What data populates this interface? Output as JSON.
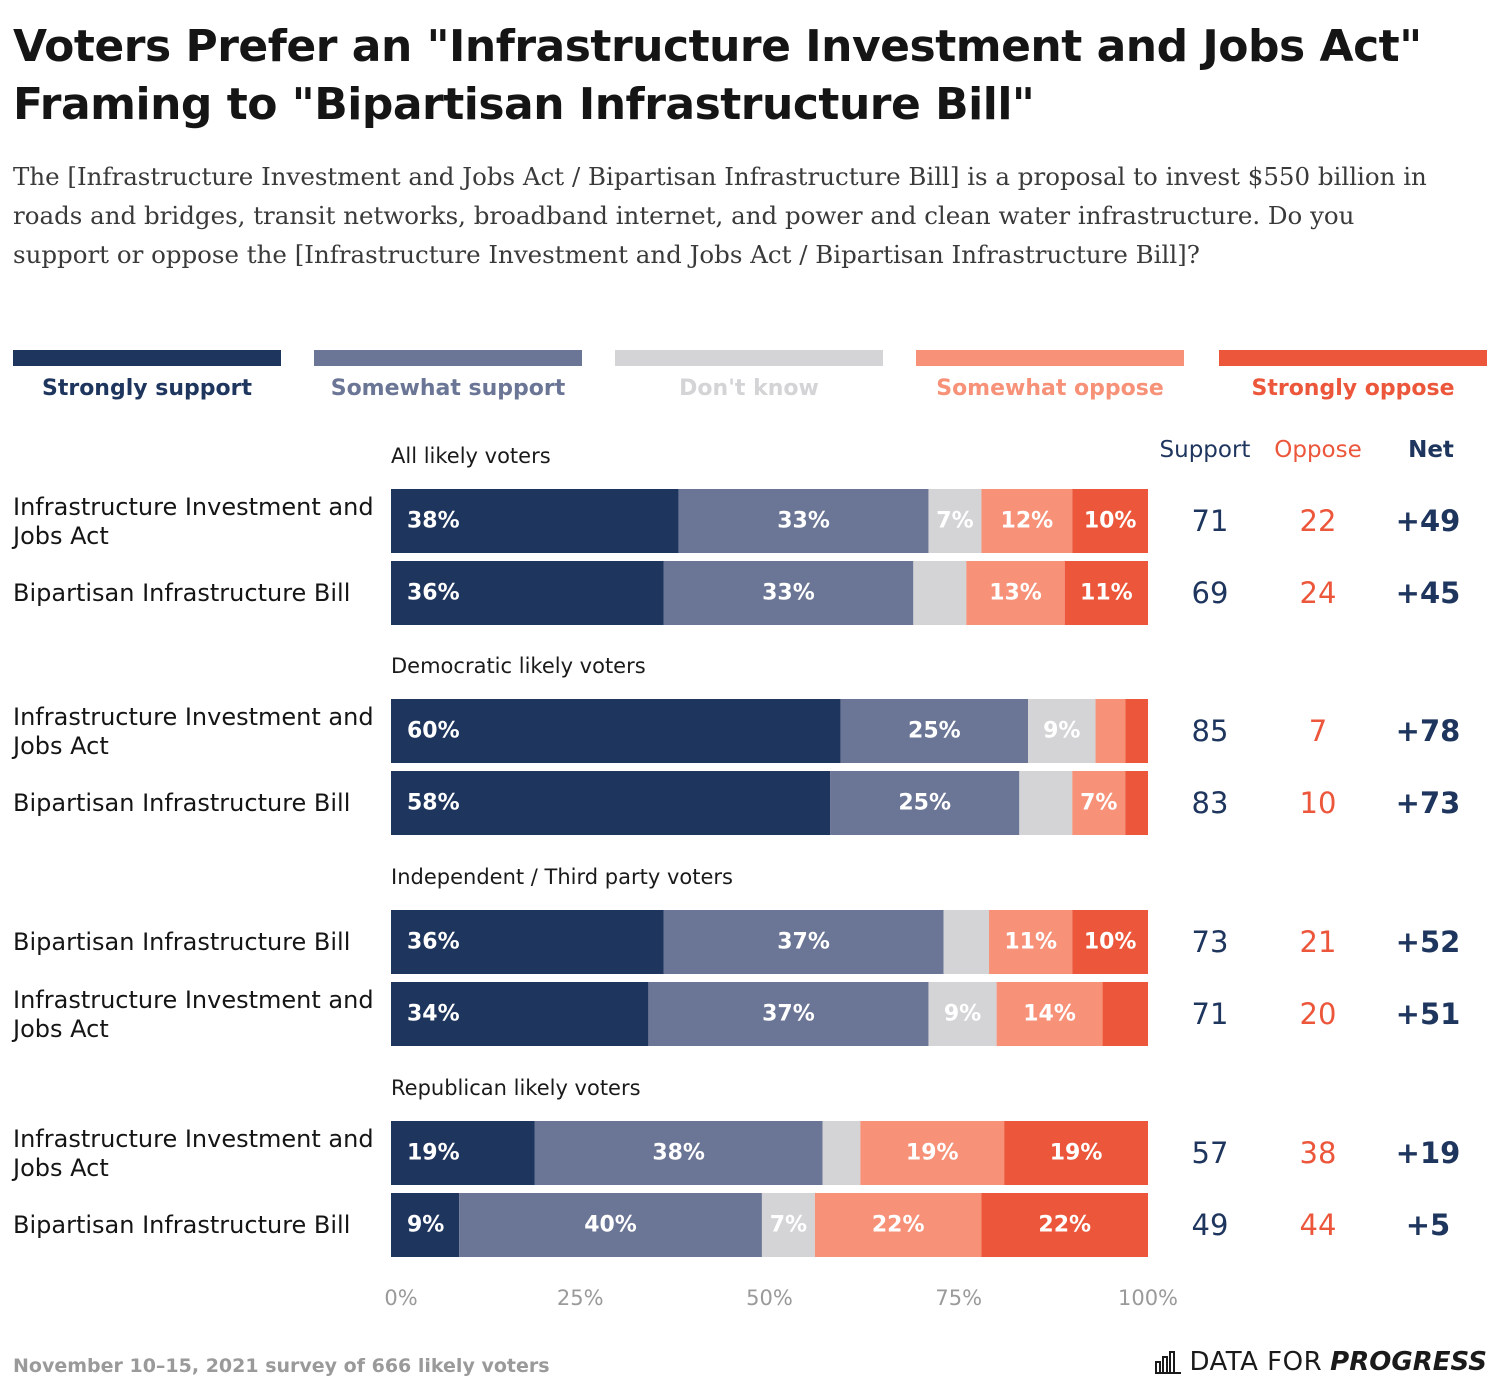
{
  "title": "Voters Prefer an \"Infrastructure Investment and Jobs Act\" Framing to \"Bipartisan Infrastructure Bill\"",
  "subtitle": "The [Infrastructure Investment and Jobs Act / Bipartisan Infrastructure Bill] is a proposal to invest $550 billion in roads and bridges, transit networks, broadband internet, and power and clean water infrastructure. Do you support or oppose the [Infrastructure Investment and Jobs Act / Bipartisan Infrastructure Bill]?",
  "legend": [
    {
      "label": "Strongly support",
      "color": "#1e355e"
    },
    {
      "label": "Somewhat support",
      "color": "#6b7595"
    },
    {
      "label": "Don't know",
      "color": "#d4d4d6"
    },
    {
      "label": "Somewhat oppose",
      "color": "#f79178"
    },
    {
      "label": "Strongly oppose",
      "color": "#ec563a"
    }
  ],
  "column_headers": {
    "support": "Support",
    "oppose": "Oppose",
    "net": "Net"
  },
  "footer": "November 10–15, 2021 survey of 666 likely voters",
  "brand": {
    "part1": "DATA FOR",
    "part2": "PROGRESS"
  },
  "chart_data": {
    "type": "bar",
    "orientation": "horizontal",
    "stacked": true,
    "series_names": [
      "Strongly support",
      "Somewhat support",
      "Don't know",
      "Somewhat oppose",
      "Strongly oppose"
    ],
    "xlim": [
      0,
      100
    ],
    "x_ticks": [
      "0%",
      "25%",
      "50%",
      "75%",
      "100%"
    ],
    "groups": [
      {
        "label": "All likely voters",
        "rows": [
          {
            "label": "Infrastructure Investment and Jobs Act",
            "values": [
              38,
              33,
              7,
              12,
              10
            ],
            "value_labels": [
              "38%",
              "33%",
              "7%",
              "12%",
              "10%"
            ],
            "support": "71",
            "oppose": "22",
            "net": "+49"
          },
          {
            "label": "Bipartisan Infrastructure Bill",
            "values": [
              36,
              33,
              7,
              13,
              11
            ],
            "value_labels": [
              "36%",
              "33%",
              "",
              "13%",
              "11%"
            ],
            "support": "69",
            "oppose": "24",
            "net": "+45"
          }
        ]
      },
      {
        "label": "Democratic likely voters",
        "rows": [
          {
            "label": "Infrastructure Investment and Jobs Act",
            "values": [
              60,
              25,
              9,
              4,
              3
            ],
            "value_labels": [
              "60%",
              "25%",
              "9%",
              "",
              ""
            ],
            "support": "85",
            "oppose": "7",
            "net": "+78"
          },
          {
            "label": "Bipartisan Infrastructure Bill",
            "values": [
              58,
              25,
              7,
              7,
              3
            ],
            "value_labels": [
              "58%",
              "25%",
              "",
              "7%",
              ""
            ],
            "support": "83",
            "oppose": "10",
            "net": "+73"
          }
        ]
      },
      {
        "label": "Independent / Third party voters",
        "rows": [
          {
            "label": "Bipartisan Infrastructure Bill",
            "values": [
              36,
              37,
              6,
              11,
              10
            ],
            "value_labels": [
              "36%",
              "37%",
              "",
              "11%",
              "10%"
            ],
            "support": "73",
            "oppose": "21",
            "net": "+52"
          },
          {
            "label": "Infrastructure Investment and Jobs Act",
            "values": [
              34,
              37,
              9,
              14,
              6
            ],
            "value_labels": [
              "34%",
              "37%",
              "9%",
              "14%",
              ""
            ],
            "support": "71",
            "oppose": "20",
            "net": "+51"
          }
        ]
      },
      {
        "label": "Republican likely voters",
        "rows": [
          {
            "label": "Infrastructure Investment and Jobs Act",
            "values": [
              19,
              38,
              5,
              19,
              19
            ],
            "value_labels": [
              "19%",
              "38%",
              "",
              "19%",
              "19%"
            ],
            "support": "57",
            "oppose": "38",
            "net": "+19"
          },
          {
            "label": "Bipartisan Infrastructure Bill",
            "values": [
              9,
              40,
              7,
              22,
              22
            ],
            "value_labels": [
              "9%",
              "40%",
              "7%",
              "22%",
              "22%"
            ],
            "support": "49",
            "oppose": "44",
            "net": "+5"
          }
        ]
      }
    ]
  }
}
